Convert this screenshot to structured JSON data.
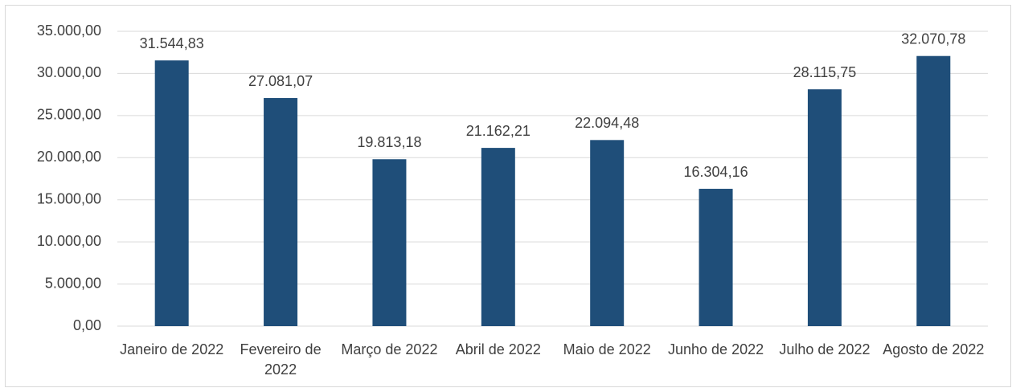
{
  "chart_data": {
    "type": "bar",
    "categories": [
      "Janeiro de 2022",
      "Fevereiro de 2022",
      "Março de 2022",
      "Abril de 2022",
      "Maio de 2022",
      "Junho de 2022",
      "Julho de 2022",
      "Agosto de 2022"
    ],
    "values": [
      31544.83,
      27081.07,
      19813.18,
      21162.21,
      22094.48,
      16304.16,
      28115.75,
      32070.78
    ],
    "value_labels": [
      "31.544,83",
      "27.081,07",
      "19.813,18",
      "21.162,21",
      "22.094,48",
      "16.304,16",
      "28.115,75",
      "32.070,78"
    ],
    "color": "#1f4e79",
    "ylim": [
      0,
      35000
    ],
    "yticks": [
      {
        "value": 0,
        "label": "0,00"
      },
      {
        "value": 5000,
        "label": "5.000,00"
      },
      {
        "value": 10000,
        "label": "10.000,00"
      },
      {
        "value": 15000,
        "label": "15.000,00"
      },
      {
        "value": 20000,
        "label": "20.000,00"
      },
      {
        "value": 25000,
        "label": "25.000,00"
      },
      {
        "value": 30000,
        "label": "30.000,00"
      },
      {
        "value": 35000,
        "label": "35.000,00"
      }
    ],
    "grid": true
  }
}
